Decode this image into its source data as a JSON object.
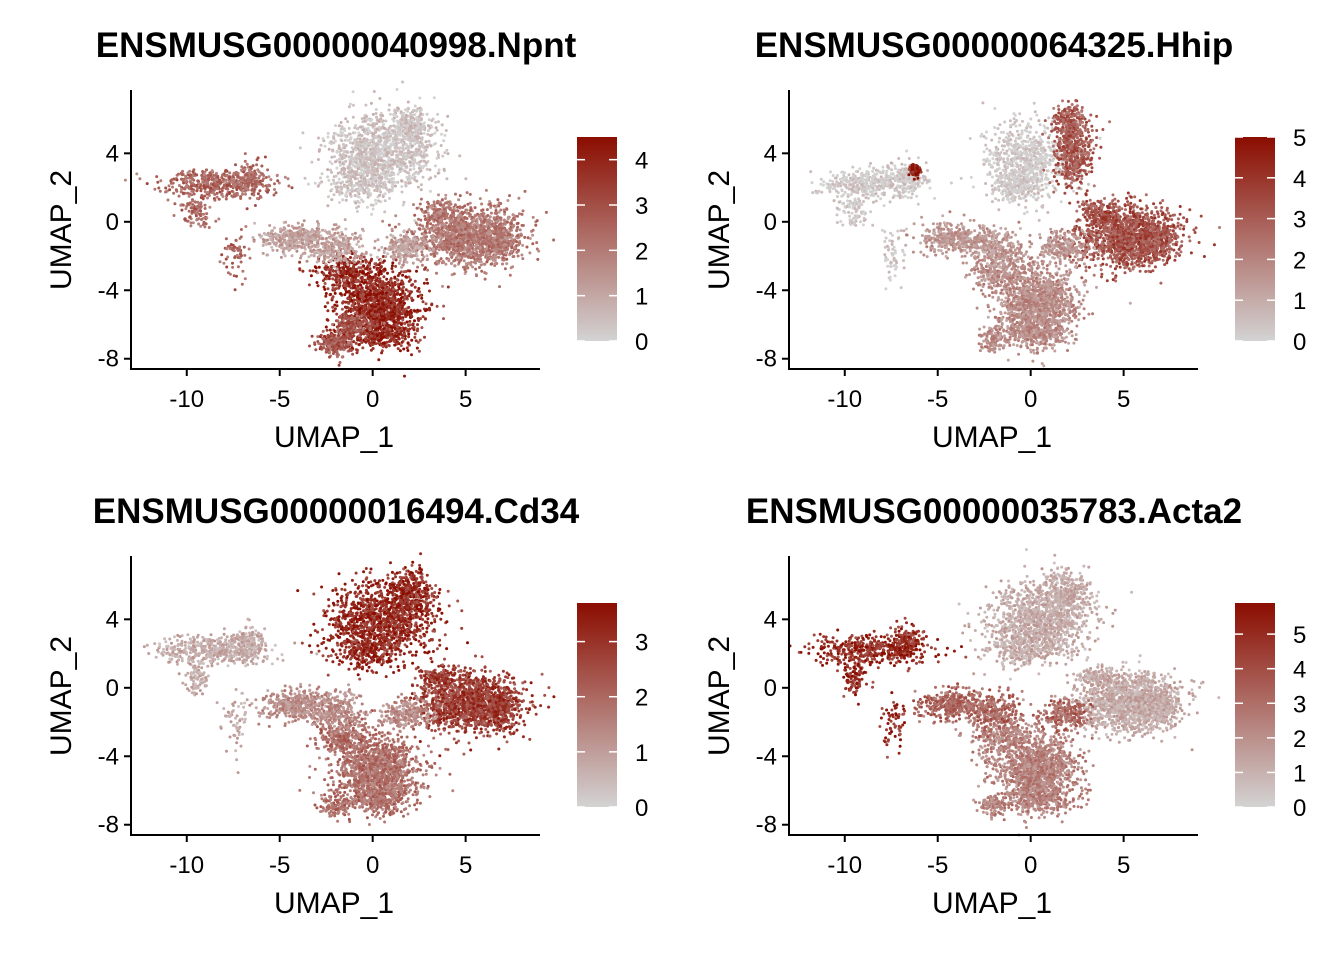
{
  "chart_data": [
    {
      "type": "scatter",
      "title": "ENSMUSG00000040998.Npnt",
      "xlabel": "UMAP_1",
      "ylabel": "UMAP_2",
      "xlim": [
        -13,
        9
      ],
      "ylim": [
        -8.6,
        7.7
      ],
      "x_ticks": [
        -10,
        -5,
        0,
        5
      ],
      "x_tick_labels": [
        "-10",
        "-5",
        "0",
        "5"
      ],
      "y_ticks": [
        4,
        0,
        -4,
        -8
      ],
      "y_tick_labels": [
        "4",
        "0",
        "-4",
        "-8"
      ],
      "legend": {
        "position": "right",
        "min": 0,
        "max": 4.5,
        "ticks": [
          4,
          3,
          2,
          1,
          0
        ],
        "tick_labels": [
          "4",
          "3",
          "2",
          "1",
          "0"
        ]
      },
      "color_low": "#d3d3d3",
      "color_high": "#8b0d00",
      "regions": [
        {
          "name": "left-island",
          "level": 0.55
        },
        {
          "name": "top-center",
          "level": 0.08
        },
        {
          "name": "right-lobe",
          "level": 0.45
        },
        {
          "name": "bottom-center",
          "level": 0.85
        },
        {
          "name": "mid-connection",
          "level": 0.25
        },
        {
          "name": "bottom-tail",
          "level": 0.6
        }
      ]
    },
    {
      "type": "scatter",
      "title": "ENSMUSG00000064325.Hhip",
      "xlabel": "UMAP_1",
      "ylabel": "UMAP_2",
      "xlim": [
        -13,
        9
      ],
      "ylim": [
        -8.6,
        7.7
      ],
      "x_ticks": [
        -10,
        -5,
        0,
        5
      ],
      "x_tick_labels": [
        "-10",
        "-5",
        "0",
        "5"
      ],
      "y_ticks": [
        4,
        0,
        -4,
        -8
      ],
      "y_tick_labels": [
        "4",
        "0",
        "-4",
        "-8"
      ],
      "legend": {
        "position": "right",
        "min": 0,
        "max": 5,
        "ticks": [
          5,
          4,
          3,
          2,
          1,
          0
        ],
        "tick_labels": [
          "5",
          "4",
          "3",
          "2",
          "1",
          "0"
        ]
      },
      "color_low": "#d3d3d3",
      "color_high": "#8b0d00",
      "regions": [
        {
          "name": "left-island",
          "level": 0.05
        },
        {
          "name": "left-hotspot",
          "level": 0.95
        },
        {
          "name": "top-center-left",
          "level": 0.05
        },
        {
          "name": "top-center-right",
          "level": 0.6
        },
        {
          "name": "right-lobe",
          "level": 0.65
        },
        {
          "name": "bottom-center",
          "level": 0.35
        },
        {
          "name": "mid-connection",
          "level": 0.3
        }
      ]
    },
    {
      "type": "scatter",
      "title": "ENSMUSG00000016494.Cd34",
      "xlabel": "UMAP_1",
      "ylabel": "UMAP_2",
      "xlim": [
        -13,
        9
      ],
      "ylim": [
        -8.6,
        7.7
      ],
      "x_ticks": [
        -10,
        -5,
        0,
        5
      ],
      "x_tick_labels": [
        "-10",
        "-5",
        "0",
        "5"
      ],
      "y_ticks": [
        4,
        0,
        -4,
        -8
      ],
      "y_tick_labels": [
        "4",
        "0",
        "-4",
        "-8"
      ],
      "legend": {
        "position": "right",
        "min": 0,
        "max": 3.7,
        "ticks": [
          3,
          2,
          1,
          0
        ],
        "tick_labels": [
          "3",
          "2",
          "1",
          "0"
        ]
      },
      "color_low": "#d3d3d3",
      "color_high": "#8b0d00",
      "regions": [
        {
          "name": "left-island",
          "level": 0.2
        },
        {
          "name": "top-center",
          "level": 0.85
        },
        {
          "name": "right-lobe",
          "level": 0.75
        },
        {
          "name": "bottom-center",
          "level": 0.5
        },
        {
          "name": "mid-connection",
          "level": 0.35
        }
      ]
    },
    {
      "type": "scatter",
      "title": "ENSMUSG00000035783.Acta2",
      "xlabel": "UMAP_1",
      "ylabel": "UMAP_2",
      "xlim": [
        -13,
        9
      ],
      "ylim": [
        -8.6,
        7.7
      ],
      "x_ticks": [
        -10,
        -5,
        0,
        5
      ],
      "x_tick_labels": [
        "-10",
        "-5",
        "0",
        "5"
      ],
      "y_ticks": [
        4,
        0,
        -4,
        -8
      ],
      "y_tick_labels": [
        "4",
        "0",
        "-4",
        "-8"
      ],
      "legend": {
        "position": "right",
        "min": 0,
        "max": 5.9,
        "ticks": [
          5,
          4,
          3,
          2,
          1,
          0
        ],
        "tick_labels": [
          "5",
          "4",
          "3",
          "2",
          "1",
          "0"
        ]
      },
      "color_low": "#d3d3d3",
      "color_high": "#8b0d00",
      "regions": [
        {
          "name": "left-island",
          "level": 0.85
        },
        {
          "name": "top-center",
          "level": 0.2
        },
        {
          "name": "right-lobe",
          "level": 0.2
        },
        {
          "name": "bottom-center",
          "level": 0.4
        },
        {
          "name": "mid-connection",
          "level": 0.55
        }
      ]
    }
  ]
}
